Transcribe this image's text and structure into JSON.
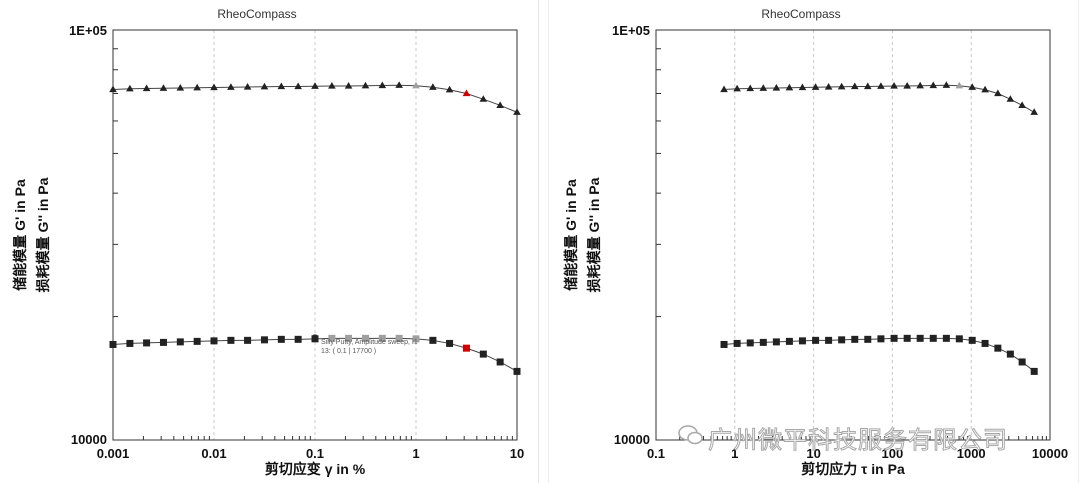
{
  "app_title": "RheoCompass",
  "watermark": "广州微平科技服务有限公司",
  "colors": {
    "data": "#222222",
    "highlight_red": "#d00000",
    "highlight_gray": "#a0a0a0",
    "grid": "#c8c8c8"
  },
  "chart_data": [
    {
      "type": "scatter",
      "title": "RheoCompass",
      "xscale": "log",
      "yscale": "log",
      "xlim": [
        0.001,
        10
      ],
      "ylim": [
        10000,
        100000
      ],
      "xlabel": "剪切应变 γ in %",
      "ylabel_1": "储能模量 G' in Pa",
      "ylabel_2": "损耗模量 G'' in Pa",
      "xtick_labels": [
        "0.001",
        "0.01",
        "0.1",
        "1",
        "10"
      ],
      "ytick_labels": [
        "10000",
        "1E+05"
      ],
      "series": [
        {
          "name": "G'",
          "marker": "triangle",
          "x": [
            0.001,
            0.00147,
            0.00215,
            0.00316,
            0.00464,
            0.00681,
            0.01,
            0.0147,
            0.0215,
            0.0316,
            0.0464,
            0.0681,
            0.1,
            0.147,
            0.215,
            0.316,
            0.464,
            0.681,
            1,
            1.47,
            2.15,
            3.16,
            4.64,
            6.81,
            10
          ],
          "y": [
            71600,
            71900,
            72000,
            72100,
            72200,
            72300,
            72400,
            72500,
            72600,
            72700,
            72800,
            72800,
            72900,
            73000,
            73000,
            73100,
            73200,
            73300,
            73100,
            72500,
            71500,
            70000,
            67800,
            65500,
            63000
          ]
        },
        {
          "name": "G''",
          "marker": "square",
          "x": [
            0.001,
            0.00147,
            0.00215,
            0.00316,
            0.00464,
            0.00681,
            0.01,
            0.0147,
            0.0215,
            0.0316,
            0.0464,
            0.0681,
            0.1,
            0.147,
            0.215,
            0.316,
            0.464,
            0.681,
            1,
            1.47,
            2.15,
            3.16,
            4.64,
            6.81,
            10
          ],
          "y": [
            17100,
            17200,
            17250,
            17300,
            17350,
            17400,
            17450,
            17500,
            17500,
            17550,
            17600,
            17600,
            17650,
            17700,
            17700,
            17700,
            17700,
            17700,
            17650,
            17500,
            17200,
            16750,
            16200,
            15500,
            14700
          ]
        }
      ],
      "highlight_gray_index": 18,
      "highlight_red_index": 21,
      "gray_square_indices": [
        13,
        14,
        15,
        16,
        17,
        18
      ],
      "tooltip": {
        "line1": "Silly Putty, Amplitude sweep, I1",
        "line2": "13:  ( 0.1 | 17700 )"
      }
    },
    {
      "type": "scatter",
      "title": "RheoCompass",
      "xscale": "log",
      "yscale": "log",
      "xlim": [
        0.1,
        10000
      ],
      "ylim": [
        10000,
        100000
      ],
      "xlabel": "剪切应力 τ in Pa",
      "ylabel_1": "储能模量 G' in Pa",
      "ylabel_2": "损耗模量 G'' in Pa",
      "xtick_labels": [
        "0.1",
        "1",
        "10",
        "100",
        "1000",
        "10000"
      ],
      "ytick_labels": [
        "10000",
        "1E+05"
      ],
      "series": [
        {
          "name": "G'",
          "marker": "triangle",
          "x": [
            0.73,
            1.07,
            1.57,
            2.3,
            3.37,
            4.93,
            7.22,
            10.6,
            15.5,
            22.7,
            33.3,
            48.7,
            71.5,
            105,
            154,
            225,
            330,
            484,
            707,
            1030,
            1500,
            2180,
            3140,
            4430,
            6300
          ],
          "y": [
            71600,
            71900,
            72000,
            72100,
            72200,
            72300,
            72400,
            72500,
            72600,
            72700,
            72800,
            72800,
            72900,
            73000,
            73000,
            73100,
            73200,
            73300,
            73100,
            72500,
            71500,
            70000,
            67800,
            65500,
            63000
          ]
        },
        {
          "name": "G''",
          "marker": "square",
          "x": [
            0.73,
            1.07,
            1.57,
            2.3,
            3.37,
            4.93,
            7.22,
            10.6,
            15.5,
            22.7,
            33.3,
            48.7,
            71.5,
            105,
            154,
            225,
            330,
            484,
            707,
            1030,
            1500,
            2180,
            3140,
            4430,
            6300
          ],
          "y": [
            17100,
            17200,
            17250,
            17300,
            17350,
            17400,
            17450,
            17500,
            17500,
            17550,
            17600,
            17600,
            17650,
            17700,
            17700,
            17700,
            17700,
            17700,
            17650,
            17500,
            17200,
            16750,
            16200,
            15500,
            14700
          ]
        }
      ],
      "highlight_gray_index": 18,
      "highlight_red_index": -1,
      "gray_square_indices": []
    }
  ]
}
